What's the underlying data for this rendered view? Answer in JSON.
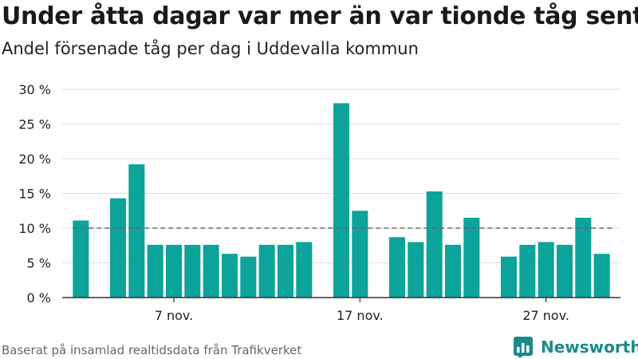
{
  "title": "Under åtta dagar var mer än var tionde tåg sent",
  "subtitle": "Andel försenade tåg per dag i Uddevalla kommun",
  "source": "Baserat på insamlad realtidsdata från Trafikverket",
  "brand": {
    "name": "Newsworthy",
    "icon": "newsworthy-logo-icon"
  },
  "colors": {
    "bar": "#0ba39a",
    "reference_line": "#666666",
    "grid": "#dddddd",
    "brand": "#1a8a8a"
  },
  "chart_data": {
    "type": "bar",
    "x": [
      2,
      3,
      4,
      5,
      6,
      7,
      8,
      9,
      10,
      11,
      12,
      13,
      14,
      15,
      16,
      17,
      18,
      19,
      20,
      21,
      22,
      23,
      24,
      25,
      26,
      27,
      28,
      29,
      30
    ],
    "values": [
      11.1,
      null,
      14.3,
      19.2,
      7.6,
      7.6,
      7.6,
      7.6,
      6.3,
      5.9,
      7.6,
      7.6,
      8.0,
      null,
      28.0,
      12.5,
      null,
      8.7,
      8.0,
      15.3,
      7.6,
      11.5,
      null,
      5.9,
      7.6,
      8.0,
      7.6,
      11.5,
      6.3
    ],
    "x_ticks": [
      {
        "x": 7,
        "label": "7 nov."
      },
      {
        "x": 17,
        "label": "17 nov."
      },
      {
        "x": 27,
        "label": "27 nov."
      }
    ],
    "y_ticks": [
      {
        "value": 0,
        "label": "0 %"
      },
      {
        "value": 5,
        "label": "5 %"
      },
      {
        "value": 10,
        "label": "10 %"
      },
      {
        "value": 15,
        "label": "15 %"
      },
      {
        "value": 20,
        "label": "20 %"
      },
      {
        "value": 25,
        "label": "25 %"
      },
      {
        "value": 30,
        "label": "30 %"
      }
    ],
    "ylim": [
      0,
      30
    ],
    "xlim": [
      1,
      31
    ],
    "reference_line": {
      "value": 10,
      "style": "dashed"
    },
    "grid": true,
    "xlabel": "",
    "ylabel": ""
  }
}
